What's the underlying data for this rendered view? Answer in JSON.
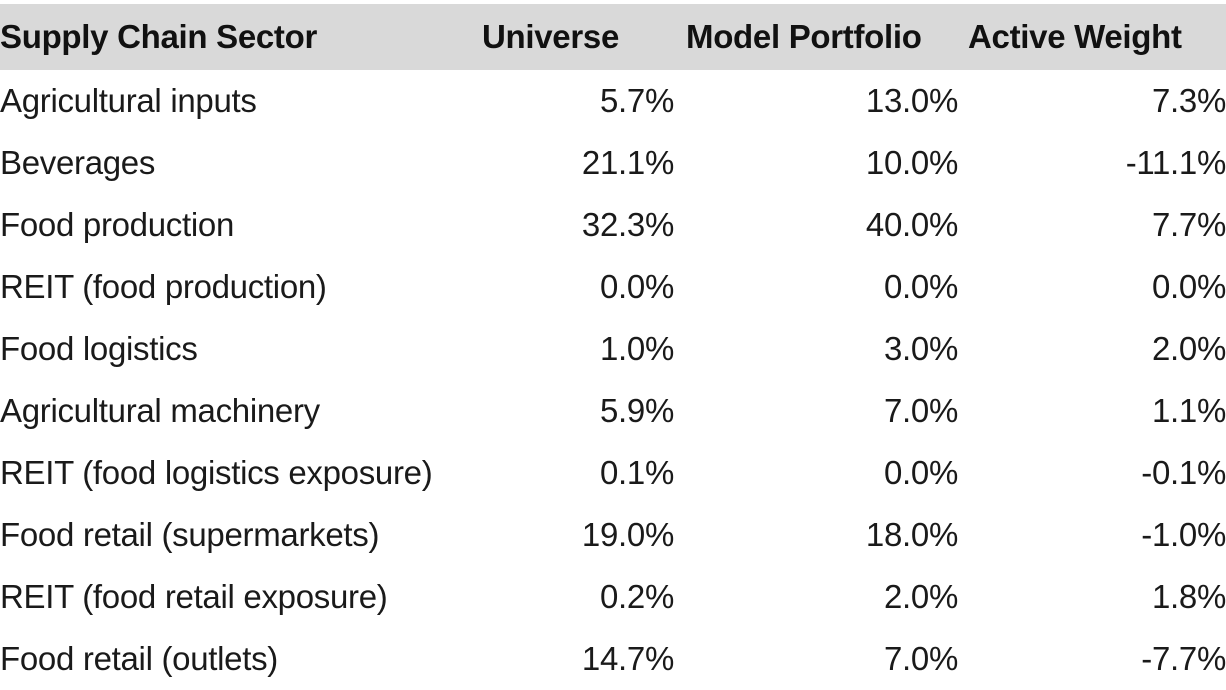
{
  "chart_data": {
    "type": "table",
    "columns": [
      "Supply Chain Sector",
      "Universe",
      "Model Portfolio",
      "Active Weight"
    ],
    "rows": [
      {
        "sector": "Agricultural inputs",
        "universe": "5.7%",
        "model": "13.0%",
        "active": "7.3%"
      },
      {
        "sector": "Beverages",
        "universe": "21.1%",
        "model": "10.0%",
        "active": "-11.1%"
      },
      {
        "sector": "Food production",
        "universe": "32.3%",
        "model": "40.0%",
        "active": "7.7%"
      },
      {
        "sector": "REIT (food production)",
        "universe": "0.0%",
        "model": "0.0%",
        "active": "0.0%"
      },
      {
        "sector": "Food logistics",
        "universe": "1.0%",
        "model": "3.0%",
        "active": "2.0%"
      },
      {
        "sector": "Agricultural machinery",
        "universe": "5.9%",
        "model": "7.0%",
        "active": "1.1%"
      },
      {
        "sector": "REIT (food logistics exposure)",
        "universe": "0.1%",
        "model": "0.0%",
        "active": "-0.1%"
      },
      {
        "sector": "Food retail (supermarkets)",
        "universe": "19.0%",
        "model": "18.0%",
        "active": "-1.0%"
      },
      {
        "sector": "REIT (food retail exposure)",
        "universe": "0.2%",
        "model": "2.0%",
        "active": "1.8%"
      },
      {
        "sector": "Food retail (outlets)",
        "universe": "14.7%",
        "model": "7.0%",
        "active": "-7.7%"
      }
    ]
  },
  "colors": {
    "header_background": "#d9d9d9",
    "text": "#1a1a1a"
  }
}
